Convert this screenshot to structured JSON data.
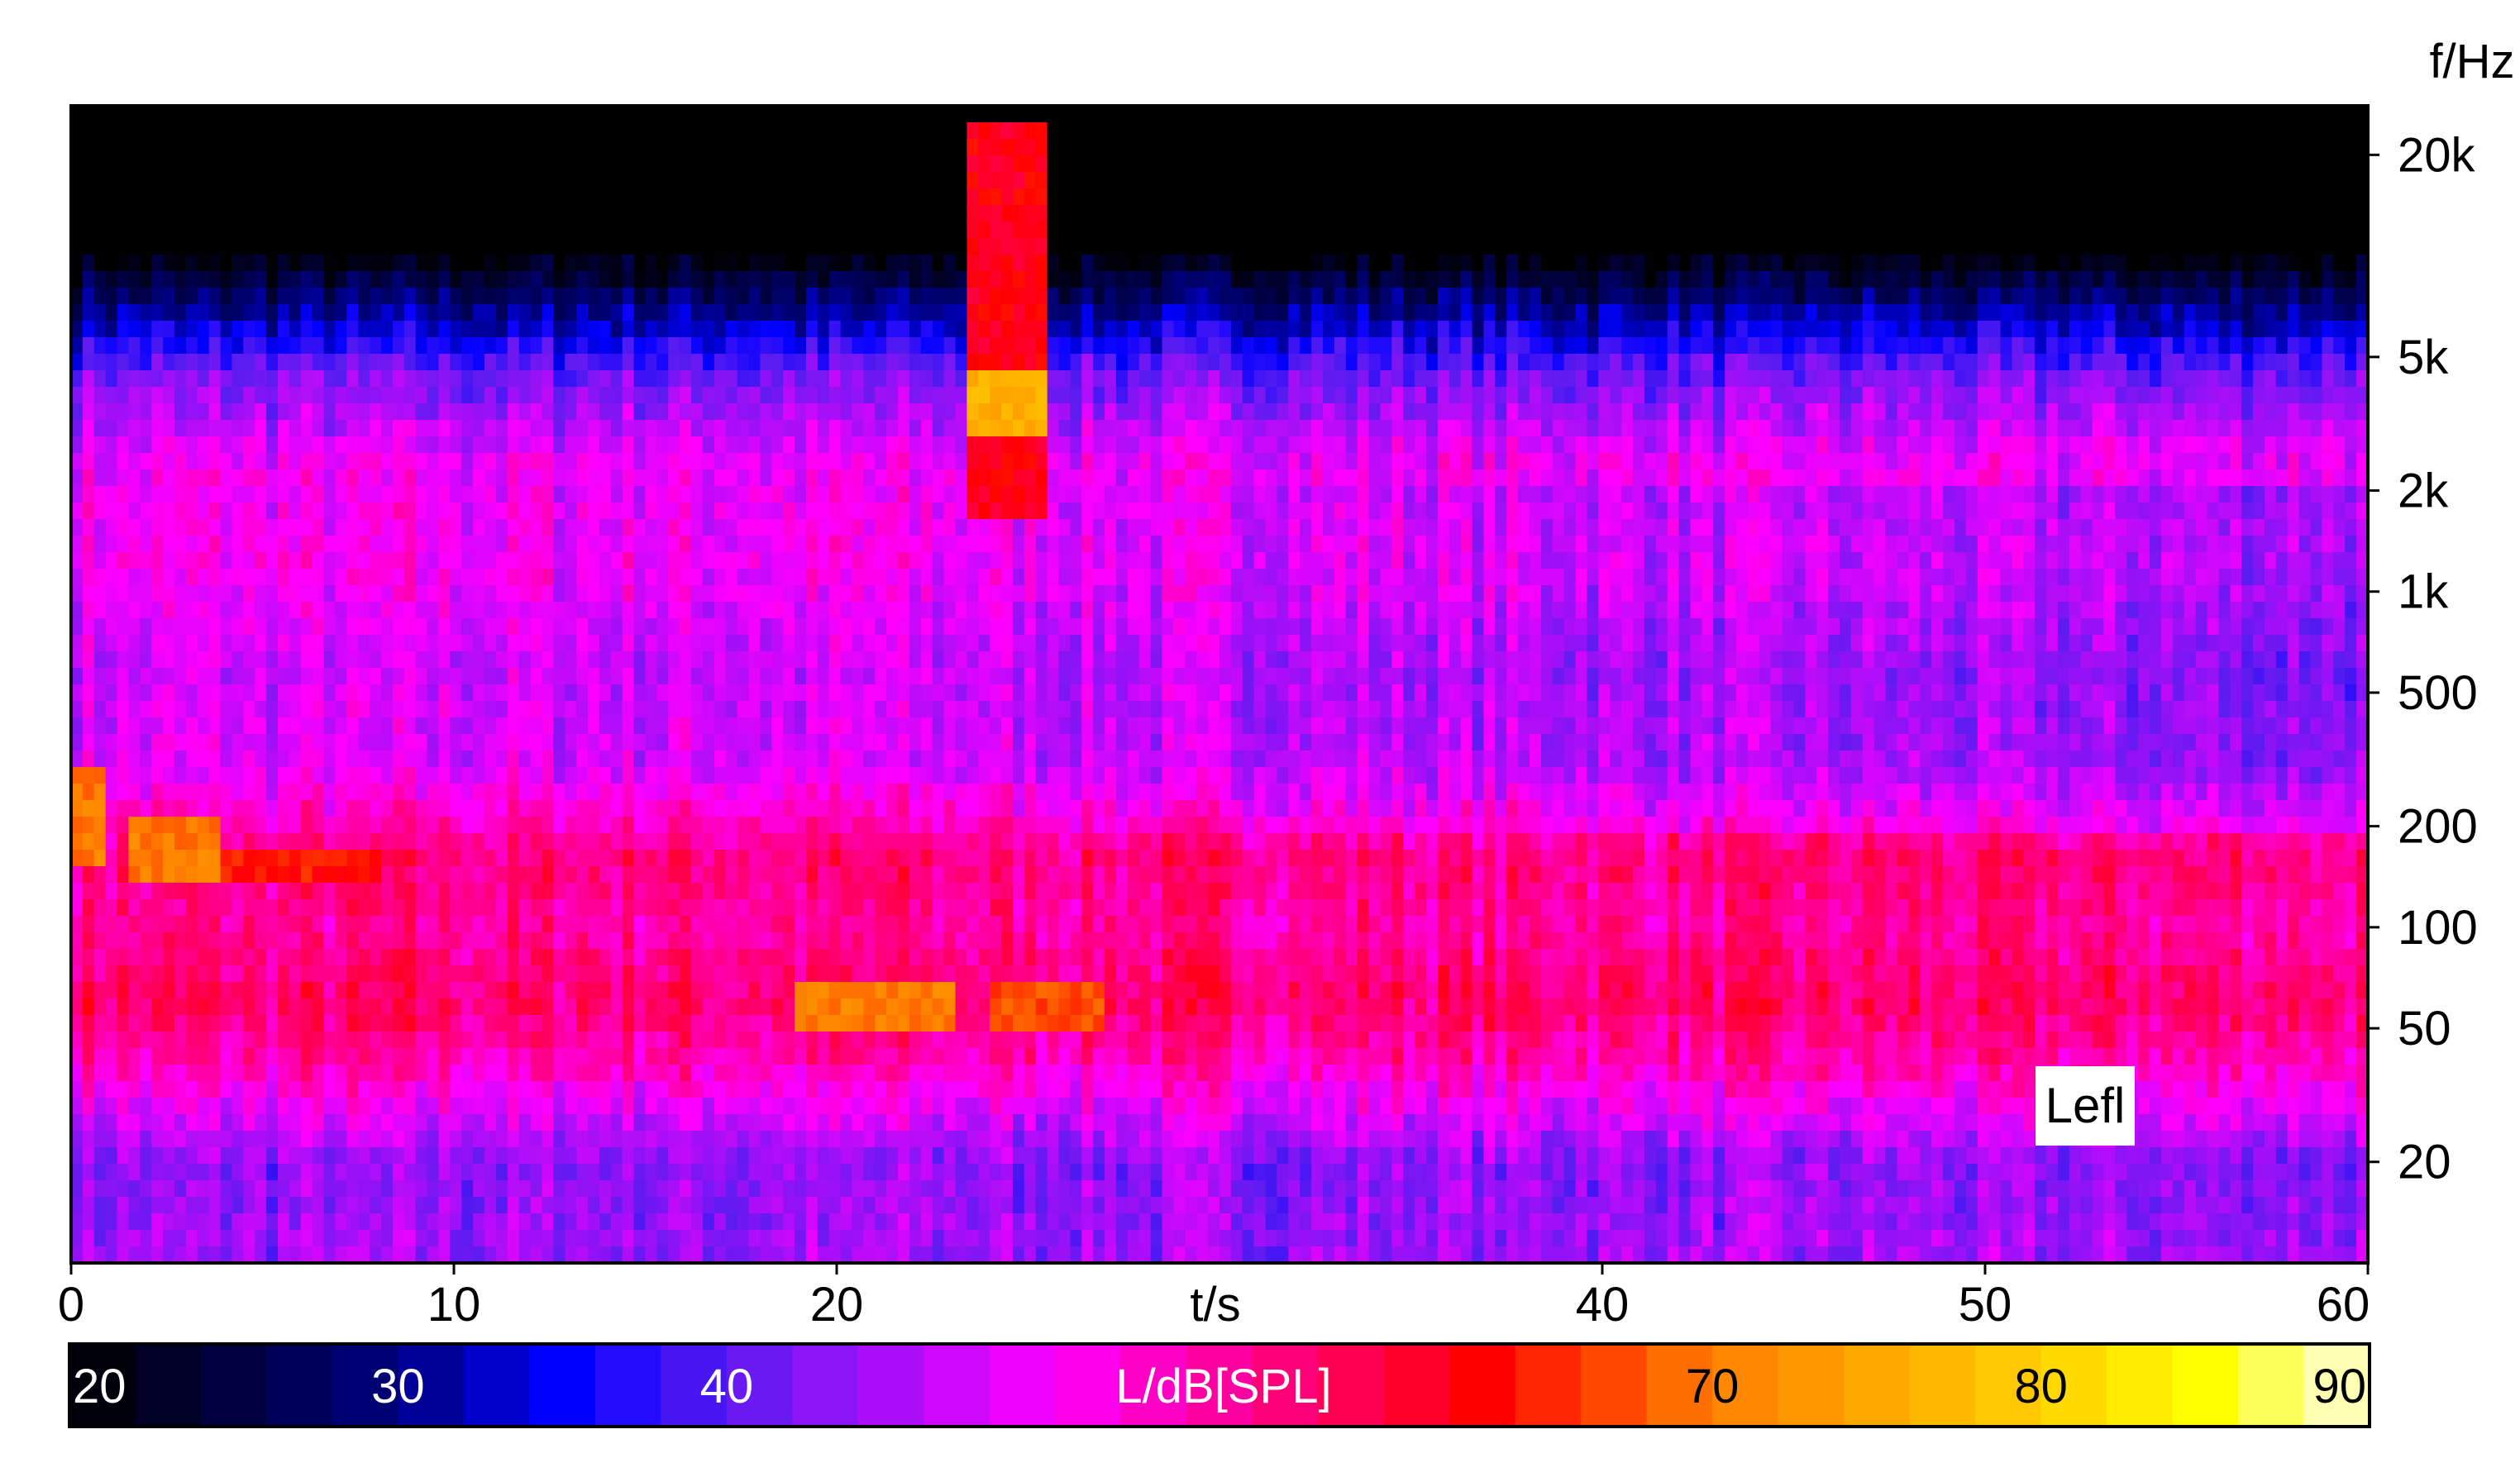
{
  "chart_data": {
    "type": "heatmap",
    "title": "",
    "xlabel": "t/s",
    "ylabel": "f/Hz",
    "xlim": [
      0,
      60
    ],
    "ylim_hz": [
      10,
      28000
    ],
    "yscale": "log",
    "x_ticks": [
      0,
      10,
      20,
      40,
      50,
      60
    ],
    "x_tick_labels": [
      "0",
      "10",
      "20",
      "40",
      "50",
      "60"
    ],
    "y_ticks": [
      20,
      50,
      100,
      200,
      500,
      1000,
      2000,
      5000,
      20000
    ],
    "y_tick_labels": [
      "20",
      "50",
      "100",
      "200",
      "500",
      "1k",
      "2k",
      "5k",
      "20k"
    ],
    "channel_label": "Lefl",
    "colorbar": {
      "label": "L/dB[SPL]",
      "range": [
        20,
        90
      ],
      "tick_values": [
        20,
        30,
        40,
        70,
        80,
        90
      ],
      "tick_labels": [
        "20",
        "30",
        "40",
        "70",
        "80",
        "90"
      ],
      "stops": [
        {
          "value": 20,
          "color": "#000000"
        },
        {
          "value": 30,
          "color": "#000080"
        },
        {
          "value": 35,
          "color": "#0000ff"
        },
        {
          "value": 40,
          "color": "#5a1cf0"
        },
        {
          "value": 50,
          "color": "#ff00ff"
        },
        {
          "value": 60,
          "color": "#ff0040"
        },
        {
          "value": 63,
          "color": "#ff0000"
        },
        {
          "value": 70,
          "color": "#ff8000"
        },
        {
          "value": 80,
          "color": "#ffd000"
        },
        {
          "value": 85,
          "color": "#ffff00"
        },
        {
          "value": 90,
          "color": "#ffffe0"
        }
      ]
    },
    "level_profile_db": [
      {
        "freq_hz": 12,
        "level": 44
      },
      {
        "freq_hz": 20,
        "level": 43
      },
      {
        "freq_hz": 40,
        "level": 54
      },
      {
        "freq_hz": 60,
        "level": 58
      },
      {
        "freq_hz": 100,
        "level": 55
      },
      {
        "freq_hz": 160,
        "level": 57
      },
      {
        "freq_hz": 300,
        "level": 48
      },
      {
        "freq_hz": 600,
        "level": 47
      },
      {
        "freq_hz": 1200,
        "level": 50
      },
      {
        "freq_hz": 2500,
        "level": 49
      },
      {
        "freq_hz": 4500,
        "level": 41
      },
      {
        "freq_hz": 7000,
        "level": 30
      },
      {
        "freq_hz": 10000,
        "level": 20
      }
    ],
    "hotspots": [
      {
        "t": [
          0,
          1
        ],
        "freq_hz": [
          150,
          300
        ],
        "level": 70
      },
      {
        "t": [
          1.5,
          4
        ],
        "freq_hz": [
          130,
          210
        ],
        "level": 70
      },
      {
        "t": [
          4,
          8
        ],
        "freq_hz": [
          140,
          170
        ],
        "level": 64
      },
      {
        "t": [
          19,
          23
        ],
        "freq_hz": [
          50,
          70
        ],
        "level": 70
      },
      {
        "t": [
          24,
          27
        ],
        "freq_hz": [
          48,
          65
        ],
        "level": 67
      },
      {
        "t": [
          23.5,
          25.5
        ],
        "freq_hz": [
          1600,
          25000
        ],
        "level": 62
      },
      {
        "t": [
          23.5,
          25.5
        ],
        "freq_hz": [
          2800,
          4800
        ],
        "level": 76
      }
    ]
  }
}
